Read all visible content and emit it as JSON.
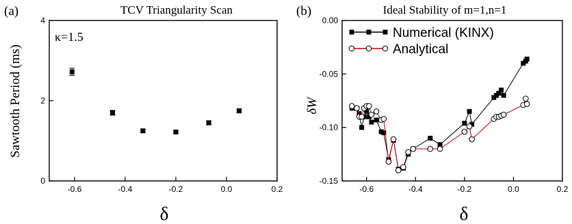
{
  "chart_data": [
    {
      "type": "scatter",
      "panel_label": "(a)",
      "title": "TCV Triangularity Scan",
      "annotation": "κ=1.5",
      "xlabel": "δ",
      "ylabel": "Sawtooth Period (ms)",
      "xlim": [
        -0.7,
        0.2
      ],
      "ylim": [
        0,
        4
      ],
      "xticks": [
        -0.6,
        -0.4,
        -0.2,
        0.0,
        0.2
      ],
      "xtick_labels": [
        "-0.6",
        "-0.4",
        "-0.2",
        "0.0",
        "0.2"
      ],
      "yticks": [
        0,
        2,
        4
      ],
      "ytick_labels": [
        "0",
        "2",
        "4"
      ],
      "grid": false,
      "series": [
        {
          "marker": "square-filled",
          "color": "#000000",
          "x": [
            -0.61,
            -0.45,
            -0.33,
            -0.2,
            -0.07,
            0.05
          ],
          "y": [
            2.72,
            1.7,
            1.25,
            1.22,
            1.45,
            1.75
          ],
          "yerr": [
            0.09,
            0.06,
            0.04,
            0.04,
            0.05,
            0.05
          ]
        }
      ]
    },
    {
      "type": "line",
      "panel_label": "(b)",
      "title": "Ideal Stability of m=1,n=1",
      "xlabel": "δ",
      "ylabel": "δW",
      "xlim": [
        -0.7,
        0.2
      ],
      "ylim": [
        -0.15,
        0.0
      ],
      "xticks": [
        -0.6,
        -0.4,
        -0.2,
        0.0,
        0.2
      ],
      "xtick_labels": [
        "-0.6",
        "-0.4",
        "-0.2",
        "0.0",
        "0.2"
      ],
      "yticks": [
        0.0,
        -0.05,
        -0.1,
        -0.15
      ],
      "ytick_labels": [
        "0.00",
        "-0.05",
        "-0.10",
        "-0.15"
      ],
      "grid": false,
      "legend": "top-left",
      "series": [
        {
          "name": "Numerical (KINX)",
          "color": "#000000",
          "marker": "square-filled",
          "x": [
            -0.66,
            -0.64,
            -0.63,
            -0.62,
            -0.61,
            -0.6,
            -0.59,
            -0.58,
            -0.56,
            -0.54,
            -0.53,
            -0.51,
            -0.49,
            -0.47,
            -0.45,
            -0.43,
            -0.41,
            -0.34,
            -0.3,
            -0.2,
            -0.18,
            -0.17,
            -0.08,
            -0.07,
            -0.06,
            -0.05,
            -0.04,
            0.04,
            0.05,
            0.055
          ],
          "y": [
            -0.082,
            -0.082,
            -0.087,
            -0.1,
            -0.09,
            -0.085,
            -0.09,
            -0.095,
            -0.093,
            -0.104,
            -0.105,
            -0.13,
            -0.112,
            -0.139,
            -0.138,
            -0.125,
            -0.12,
            -0.11,
            -0.116,
            -0.096,
            -0.085,
            -0.097,
            -0.072,
            -0.07,
            -0.068,
            -0.065,
            -0.07,
            -0.04,
            -0.038,
            -0.036
          ]
        },
        {
          "name": "Analytical",
          "color": "#cc0000",
          "marker": "circle-open",
          "x": [
            -0.66,
            -0.64,
            -0.63,
            -0.62,
            -0.61,
            -0.6,
            -0.59,
            -0.58,
            -0.56,
            -0.54,
            -0.53,
            -0.51,
            -0.49,
            -0.47,
            -0.45,
            -0.43,
            -0.41,
            -0.34,
            -0.3,
            -0.2,
            -0.18,
            -0.17,
            -0.08,
            -0.07,
            -0.06,
            -0.05,
            -0.04,
            0.04,
            0.05,
            0.055
          ],
          "y": [
            -0.08,
            -0.082,
            -0.09,
            -0.09,
            -0.082,
            -0.08,
            -0.08,
            -0.088,
            -0.085,
            -0.093,
            -0.092,
            -0.132,
            -0.111,
            -0.14,
            -0.137,
            -0.123,
            -0.12,
            -0.12,
            -0.12,
            -0.104,
            -0.099,
            -0.111,
            -0.092,
            -0.09,
            -0.09,
            -0.089,
            -0.088,
            -0.079,
            -0.073,
            -0.078
          ]
        }
      ]
    }
  ]
}
